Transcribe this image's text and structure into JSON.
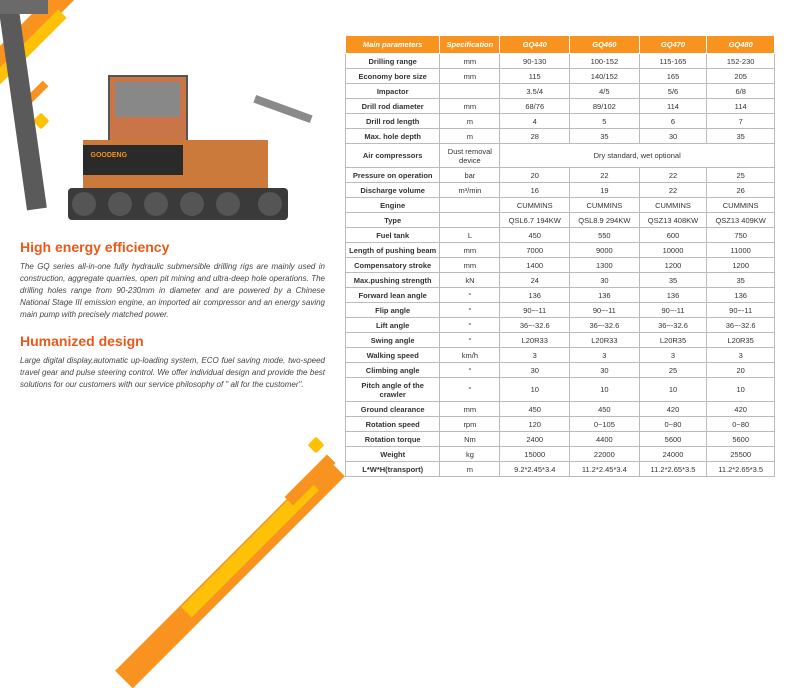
{
  "left": {
    "machine_brand": "GOODENG",
    "sections": [
      {
        "title": "High energy efficiency",
        "text": "The GQ series all-in-one fully hydraulic submersible drilling rigs are mainly used in construction, aggregate quarries, open pit mining and ultra-deep hole operations. The drilling holes range from 90-230mm in diameter and are powered by a Chinese National Stage III emission engine, an imported air compressor and an energy saving main pump with precisely matched power."
      },
      {
        "title": "Humanized design",
        "text": "Large digital display,automatic up-loading system, ECO fuel saving mode, two-speed travel gear and pulse steering control. We offer individual design and provide the best solutions for our customers with our service philosophy of \" all for the customer\"."
      }
    ]
  },
  "table": {
    "headers": [
      "Main parameters",
      "Specification",
      "GQ440",
      "GQ460",
      "GQ470",
      "GQ480"
    ],
    "rows": [
      {
        "label": "Drilling range",
        "unit": "mm",
        "vals": [
          "90-130",
          "100-152",
          "115-165",
          "152-230"
        ]
      },
      {
        "label": "Economy bore size",
        "unit": "mm",
        "vals": [
          "115",
          "140/152",
          "165",
          "205"
        ]
      },
      {
        "label": "Impactor",
        "unit": "",
        "vals": [
          "3.5/4",
          "4/5",
          "5/6",
          "6/8"
        ]
      },
      {
        "label": "Drill rod diameter",
        "unit": "mm",
        "vals": [
          "68/76",
          "89/102",
          "114",
          "114"
        ]
      },
      {
        "label": "Drill rod length",
        "unit": "m",
        "vals": [
          "4",
          "5",
          "6",
          "7"
        ]
      },
      {
        "label": "Max. hole depth",
        "unit": "m",
        "vals": [
          "28",
          "35",
          "30",
          "35"
        ]
      },
      {
        "label": "Air compressors",
        "merged": true,
        "unit": "Dust removal device",
        "merged_text": "Dry standard, wet optional"
      },
      {
        "label": "Pressure on operation",
        "unit": "bar",
        "vals": [
          "20",
          "22",
          "22",
          "25"
        ]
      },
      {
        "label": "Discharge volume",
        "unit": "m³/min",
        "vals": [
          "16",
          "19",
          "22",
          "26"
        ]
      },
      {
        "label": "Engine",
        "unit": "",
        "vals": [
          "CUMMINS",
          "CUMMINS",
          "CUMMINS",
          "CUMMINS"
        ]
      },
      {
        "label": "Type",
        "unit": "",
        "vals": [
          "QSL6.7 194KW",
          "QSL8.9 294KW",
          "QSZ13 408KW",
          "QSZ13 409KW"
        ]
      },
      {
        "label": "Fuel tank",
        "unit": "L",
        "vals": [
          "450",
          "550",
          "600",
          "750"
        ]
      },
      {
        "label": "Length of pushing beam",
        "unit": "mm",
        "vals": [
          "7000",
          "9000",
          "10000",
          "11000"
        ]
      },
      {
        "label": "Compensatory stroke",
        "unit": "mm",
        "vals": [
          "1400",
          "1300",
          "1200",
          "1200"
        ]
      },
      {
        "label": "Max.pushing strength",
        "unit": "kN",
        "vals": [
          "24",
          "30",
          "35",
          "35"
        ]
      },
      {
        "label": "Forward lean angle",
        "unit": "°",
        "vals": [
          "136",
          "136",
          "136",
          "136"
        ]
      },
      {
        "label": "Flip angle",
        "unit": "°",
        "vals": [
          "90~-11",
          "90~-11",
          "90~-11",
          "90~-11"
        ]
      },
      {
        "label": "Lift angle",
        "unit": "°",
        "vals": [
          "36~-32.6",
          "36~-32.6",
          "36~-32.6",
          "36~-32.6"
        ]
      },
      {
        "label": "Swing angle",
        "unit": "°",
        "vals": [
          "L20R33",
          "L20R33",
          "L20R35",
          "L20R35"
        ]
      },
      {
        "label": "Walking speed",
        "unit": "km/h",
        "vals": [
          "3",
          "3",
          "3",
          "3"
        ]
      },
      {
        "label": "Climbing angle",
        "unit": "°",
        "vals": [
          "30",
          "30",
          "25",
          "20"
        ]
      },
      {
        "label": "Pitch angle of the crawler",
        "unit": "°",
        "vals": [
          "10",
          "10",
          "10",
          "10"
        ]
      },
      {
        "label": "Ground clearance",
        "unit": "mm",
        "vals": [
          "450",
          "450",
          "420",
          "420"
        ]
      },
      {
        "label": "Rotation speed",
        "unit": "rpm",
        "vals": [
          "120",
          "0~105",
          "0~80",
          "0~80"
        ]
      },
      {
        "label": "Rotation torque",
        "unit": "Nm",
        "vals": [
          "2400",
          "4400",
          "5600",
          "5600"
        ]
      },
      {
        "label": "Weight",
        "unit": "kg",
        "vals": [
          "15000",
          "22000",
          "24000",
          "25500"
        ]
      },
      {
        "label": "L*W*H(transport)",
        "unit": "m",
        "vals": [
          "9.2*2.45*3.4",
          "11.2*2.45*3.4",
          "11.2*2.65*3.5",
          "11.2*2.65*3.5"
        ]
      }
    ]
  },
  "colors": {
    "accent": "#f7931e",
    "accent2": "#ffc107",
    "title": "#e8591a"
  }
}
